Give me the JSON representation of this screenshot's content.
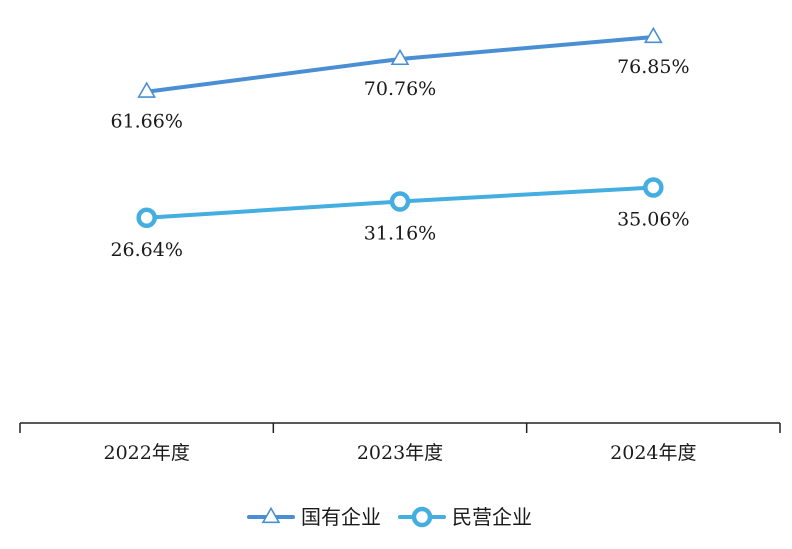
{
  "chart_data": {
    "type": "line",
    "categories": [
      "2022年度",
      "2023年度",
      "2024年度"
    ],
    "ylim": [
      0,
      100
    ],
    "grid": false,
    "legend_position": "bottom",
    "series": [
      {
        "name": "国有企业",
        "values": [
          61.66,
          70.76,
          76.85
        ],
        "labels": [
          "61.66%",
          "70.76%",
          "76.85%"
        ],
        "color": "#4a8fd4",
        "marker": "triangle"
      },
      {
        "name": "民营企业",
        "values": [
          26.64,
          31.16,
          35.06
        ],
        "labels": [
          "26.64%",
          "31.16%",
          "35.06%"
        ],
        "color": "#45aee0",
        "marker": "circle"
      }
    ]
  }
}
